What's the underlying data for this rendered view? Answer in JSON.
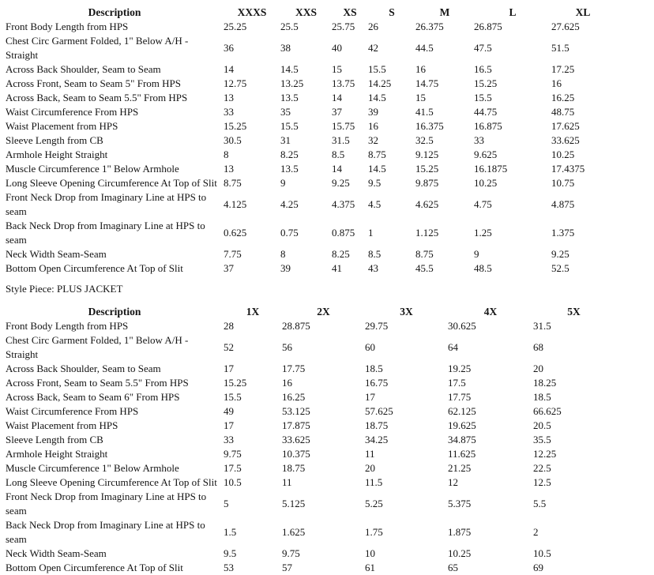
{
  "style_piece_text": "Style Piece: PLUS JACKET",
  "tables": [
    {
      "name": "regular-size-spec",
      "headers": [
        "Description",
        "XXXS",
        "XXS",
        "XS",
        "S",
        "M",
        "L",
        "XL"
      ],
      "rows": [
        {
          "desc": "Front Body Length from HPS",
          "values": [
            "25.25",
            "25.5",
            "25.75",
            "26",
            "26.375",
            "26.875",
            "27.625"
          ]
        },
        {
          "desc": "Chest Circ Garment Folded, 1\" Below A/H - Straight",
          "values": [
            "36",
            "38",
            "40",
            "42",
            "44.5",
            "47.5",
            "51.5"
          ]
        },
        {
          "desc": "Across Back Shoulder, Seam to Seam",
          "values": [
            "14",
            "14.5",
            "15",
            "15.5",
            "16",
            "16.5",
            "17.25"
          ]
        },
        {
          "desc": "Across Front, Seam to Seam 5\" From HPS",
          "values": [
            "12.75",
            "13.25",
            "13.75",
            "14.25",
            "14.75",
            "15.25",
            "16"
          ]
        },
        {
          "desc": "Across Back, Seam to Seam 5.5\" From HPS",
          "values": [
            "13",
            "13.5",
            "14",
            "14.5",
            "15",
            "15.5",
            "16.25"
          ]
        },
        {
          "desc": "Waist Circumference From HPS",
          "values": [
            "33",
            "35",
            "37",
            "39",
            "41.5",
            "44.75",
            "48.75"
          ]
        },
        {
          "desc": "Waist Placement from HPS",
          "values": [
            "15.25",
            "15.5",
            "15.75",
            "16",
            "16.375",
            "16.875",
            "17.625"
          ]
        },
        {
          "desc": "Sleeve Length from CB",
          "values": [
            "30.5",
            "31",
            "31.5",
            "32",
            "32.5",
            "33",
            "33.625"
          ]
        },
        {
          "desc": "Armhole Height Straight",
          "values": [
            "8",
            "8.25",
            "8.5",
            "8.75",
            "9.125",
            "9.625",
            "10.25"
          ]
        },
        {
          "desc": "Muscle Circumference 1\" Below Armhole",
          "values": [
            "13",
            "13.5",
            "14",
            "14.5",
            "15.25",
            "16.1875",
            "17.4375"
          ]
        },
        {
          "desc": "Long Sleeve Opening Circumference At Top of Slit",
          "values": [
            "8.75",
            "9",
            "9.25",
            "9.5",
            "9.875",
            "10.25",
            "10.75"
          ]
        },
        {
          "desc": "Front Neck Drop from Imaginary Line at HPS to seam",
          "values": [
            "4.125",
            "4.25",
            "4.375",
            "4.5",
            "4.625",
            "4.75",
            "4.875"
          ]
        },
        {
          "desc": "Back Neck Drop from Imaginary Line at HPS to seam",
          "values": [
            "0.625",
            "0.75",
            "0.875",
            "1",
            "1.125",
            "1.25",
            "1.375"
          ]
        },
        {
          "desc": "Neck Width Seam-Seam",
          "values": [
            "7.75",
            "8",
            "8.25",
            "8.5",
            "8.75",
            "9",
            "9.25"
          ]
        },
        {
          "desc": "Bottom Open Circumference At Top of Slit",
          "values": [
            "37",
            "39",
            "41",
            "43",
            "45.5",
            "48.5",
            "52.5"
          ]
        }
      ]
    },
    {
      "name": "plus-jacket-size-spec",
      "headers": [
        "Description",
        "1X",
        "2X",
        "3X",
        "4X",
        "5X"
      ],
      "rows": [
        {
          "desc": "Front Body Length from HPS",
          "values": [
            "28",
            "28.875",
            "29.75",
            "30.625",
            "31.5"
          ]
        },
        {
          "desc": "Chest Circ Garment Folded, 1\" Below A/H - Straight",
          "values": [
            "52",
            "56",
            "60",
            "64",
            "68"
          ]
        },
        {
          "desc": "Across Back Shoulder, Seam to Seam",
          "values": [
            "17",
            "17.75",
            "18.5",
            "19.25",
            "20"
          ]
        },
        {
          "desc": "Across Front, Seam to Seam 5.5\" From HPS",
          "values": [
            "15.25",
            "16",
            "16.75",
            "17.5",
            "18.25"
          ]
        },
        {
          "desc": "Across Back, Seam to Seam 6\" From HPS",
          "values": [
            "15.5",
            "16.25",
            "17",
            "17.75",
            "18.5"
          ]
        },
        {
          "desc": "Waist Circumference From HPS",
          "values": [
            "49",
            "53.125",
            "57.625",
            "62.125",
            "66.625"
          ]
        },
        {
          "desc": "Waist Placement from HPS",
          "values": [
            "17",
            "17.875",
            "18.75",
            "19.625",
            "20.5"
          ]
        },
        {
          "desc": "Sleeve Length from CB",
          "values": [
            "33",
            "33.625",
            "34.25",
            "34.875",
            "35.5"
          ]
        },
        {
          "desc": "Armhole Height Straight",
          "values": [
            "9.75",
            "10.375",
            "11",
            "11.625",
            "12.25"
          ]
        },
        {
          "desc": "Muscle Circumference 1\" Below Armhole",
          "values": [
            "17.5",
            "18.75",
            "20",
            "21.25",
            "22.5"
          ]
        },
        {
          "desc": "Long Sleeve Opening Circumference At Top of Slit",
          "values": [
            "10.5",
            "11",
            "11.5",
            "12",
            "12.5"
          ]
        },
        {
          "desc": "Front Neck Drop from Imaginary Line at HPS to seam",
          "values": [
            "5",
            "5.125",
            "5.25",
            "5.375",
            "5.5"
          ]
        },
        {
          "desc": "Back Neck Drop from Imaginary Line at HPS to seam",
          "values": [
            "1.5",
            "1.625",
            "1.75",
            "1.875",
            "2"
          ]
        },
        {
          "desc": "Neck Width Seam-Seam",
          "values": [
            "9.5",
            "9.75",
            "10",
            "10.25",
            "10.5"
          ]
        },
        {
          "desc": "Bottom Open Circumference At Top of Slit",
          "values": [
            "53",
            "57",
            "61",
            "65",
            "69"
          ]
        }
      ]
    }
  ]
}
